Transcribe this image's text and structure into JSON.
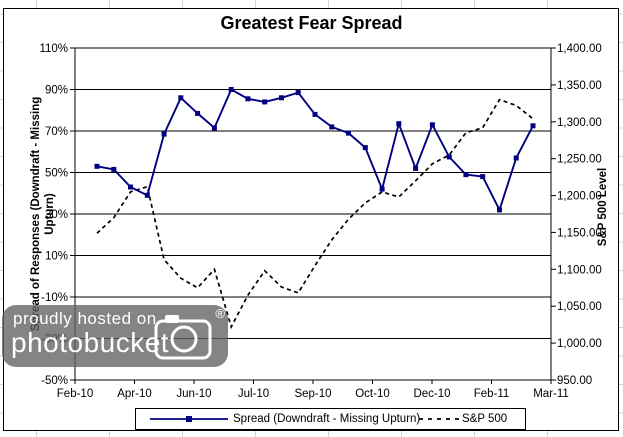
{
  "watermark": {
    "line1": "proudly hosted on",
    "line2": "photobucket",
    "registered": "®"
  },
  "chart_data": {
    "type": "line",
    "title": "Greatest Fear Spread",
    "grid": "horizontal",
    "legend_position": "bottom",
    "x_tick_labels": [
      "Feb-10",
      "Apr-10",
      "Jun-10",
      "Jul-10",
      "Sep-10",
      "Oct-10",
      "Dec-10",
      "Feb-11",
      "Mar-11"
    ],
    "left_axis": {
      "title_line1": "Spread of Responses (Downdraft - Missing",
      "title_line2": "Upturn)",
      "min": -50,
      "max": 110,
      "step": 20,
      "tick_labels": [
        "110%",
        "90%",
        "70%",
        "50%",
        "30%",
        "10%",
        "-10%",
        "-30%",
        "-50%"
      ]
    },
    "right_axis": {
      "title": "S&P 500 Level",
      "min": 950,
      "max": 1400,
      "step": 50,
      "tick_labels": [
        "1,400.00",
        "1,350.00",
        "1,300.00",
        "1,250.00",
        "1,200.00",
        "1,150.00",
        "1,100.00",
        "1,050.00",
        "1,000.00",
        "950.00"
      ]
    },
    "series": [
      {
        "name": "Spread (Downdraft - Missing Upturn)",
        "axis": "left",
        "color": "#000080",
        "style": "solid line with square markers",
        "values": [
          53,
          51.5,
          43,
          39,
          68.5,
          86,
          78.5,
          71.5,
          90,
          85.5,
          84,
          86,
          88.5,
          78,
          72,
          69,
          62,
          42,
          73.5,
          52,
          73,
          57.5,
          49,
          48,
          32,
          57,
          72.5
        ]
      },
      {
        "name": "S&P 500",
        "axis": "right",
        "color": "#000000",
        "style": "dashed line",
        "values": [
          1149,
          1170,
          1205,
          1212,
          1113,
          1088,
          1075,
          1100,
          1022,
          1065,
          1098,
          1076,
          1068,
          1105,
          1140,
          1168,
          1190,
          1205,
          1198,
          1220,
          1243,
          1255,
          1285,
          1292,
          1330,
          1322,
          1304
        ]
      }
    ]
  }
}
